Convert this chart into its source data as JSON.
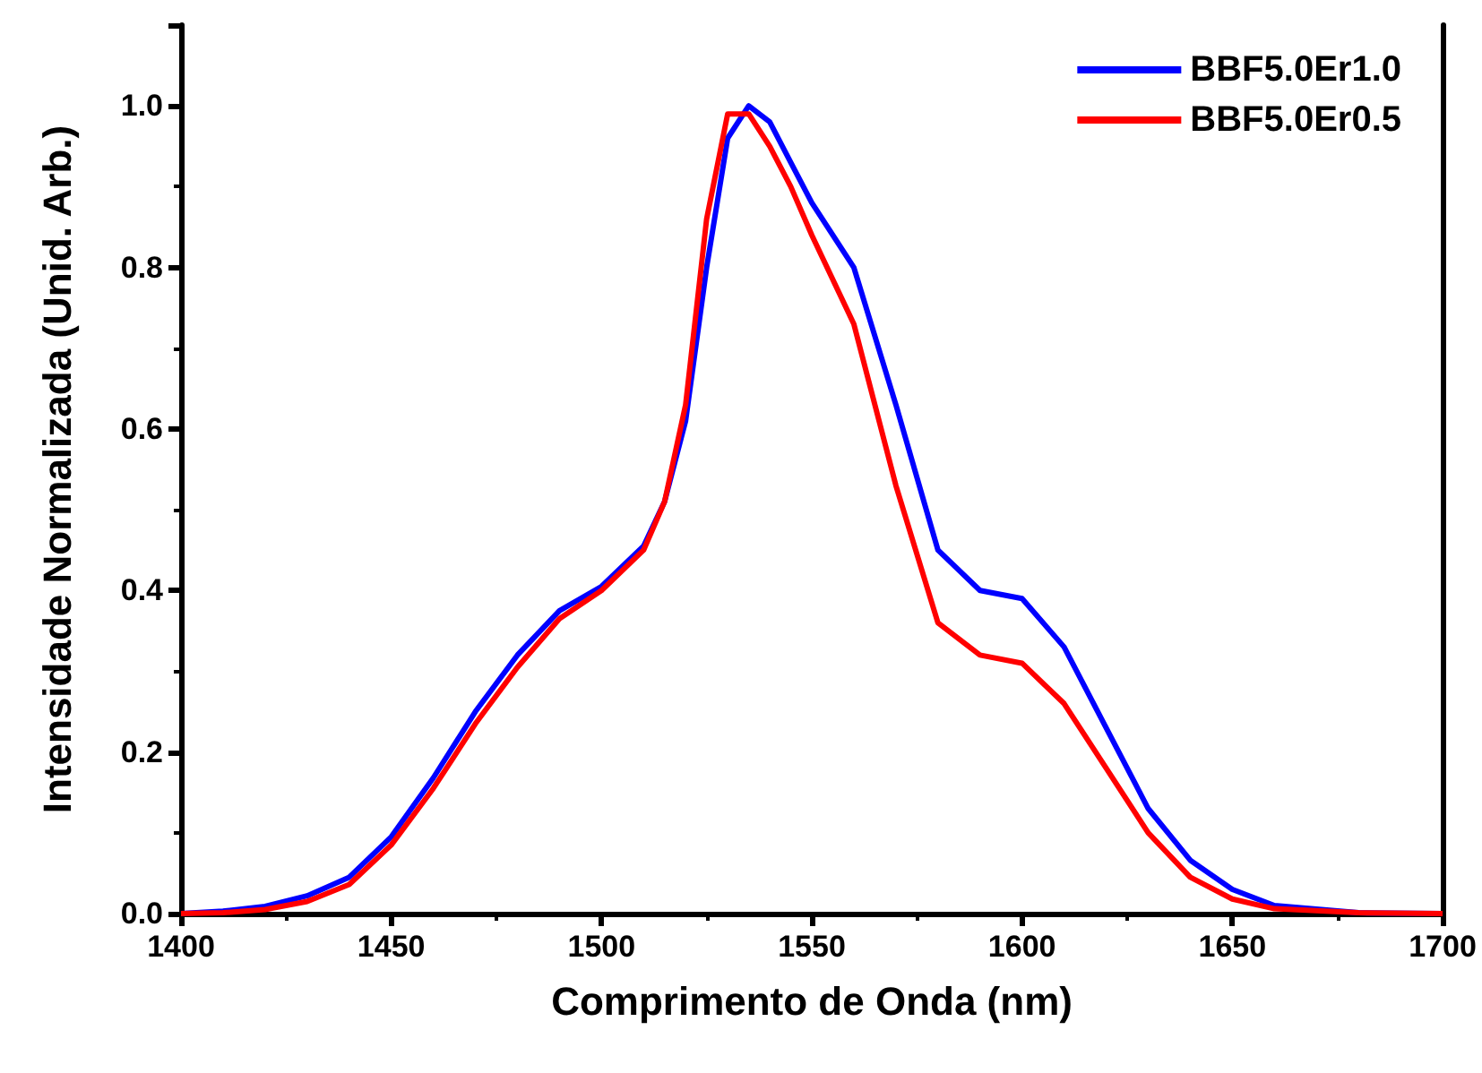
{
  "chart_data": {
    "type": "line",
    "xlabel": "Comprimento de Onda (nm)",
    "ylabel": "Intensidade Normalizada (Unid. Arb.)",
    "x": [
      1400,
      1410,
      1420,
      1430,
      1440,
      1450,
      1460,
      1470,
      1480,
      1490,
      1500,
      1510,
      1515,
      1520,
      1525,
      1530,
      1535,
      1540,
      1545,
      1550,
      1560,
      1570,
      1580,
      1590,
      1600,
      1610,
      1620,
      1630,
      1640,
      1650,
      1660,
      1680,
      1700
    ],
    "series": [
      {
        "name": "BBF5.0Er1.0",
        "color": "#0000ff",
        "values": [
          0,
          0.003,
          0.009,
          0.022,
          0.045,
          0.095,
          0.168,
          0.25,
          0.32,
          0.375,
          0.405,
          0.455,
          0.51,
          0.61,
          0.8,
          0.96,
          1.0,
          0.98,
          0.93,
          0.88,
          0.8,
          0.63,
          0.45,
          0.4,
          0.39,
          0.33,
          0.23,
          0.13,
          0.066,
          0.03,
          0.01,
          0.001,
          0
        ]
      },
      {
        "name": "BBF5.0Er0.5",
        "color": "#ff0000",
        "values": [
          0,
          0.001,
          0.005,
          0.015,
          0.036,
          0.085,
          0.155,
          0.235,
          0.305,
          0.365,
          0.4,
          0.45,
          0.51,
          0.63,
          0.86,
          0.99,
          0.99,
          0.95,
          0.9,
          0.84,
          0.73,
          0.53,
          0.36,
          0.32,
          0.31,
          0.26,
          0.18,
          0.1,
          0.045,
          0.018,
          0.006,
          0.001,
          0
        ]
      }
    ],
    "xlim": [
      1400,
      1700
    ],
    "xticks": [
      1400,
      1450,
      1500,
      1550,
      1600,
      1650,
      1700
    ],
    "ylim": [
      0,
      1.1
    ],
    "yticks": [
      {
        "value": 0,
        "label": "0.0"
      },
      {
        "value": 0.2,
        "label": "0.2"
      },
      {
        "value": 0.4,
        "label": "0.4"
      },
      {
        "value": 0.6,
        "label": "0.6"
      },
      {
        "value": 0.8,
        "label": "0.8"
      },
      {
        "value": 1.0,
        "label": "1.0"
      }
    ],
    "grid": false,
    "legend": "top right",
    "marker": "none",
    "line_style": "solid"
  }
}
